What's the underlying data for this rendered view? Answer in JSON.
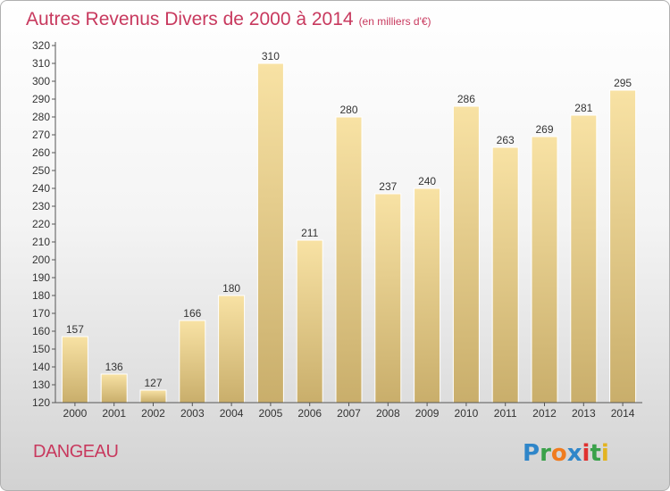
{
  "title": "Autres Revenus Divers de 2000 à 2014",
  "subtitle": "(en milliers d'€)",
  "commune": "DANGEAU",
  "logo_text": "Proxiti",
  "colors": {
    "title": "#c8395e",
    "bar_light": "#f8e2a4",
    "bar_dark": "#c9ae6b",
    "axis": "#555555"
  },
  "chart_data": {
    "type": "bar",
    "title": "Autres Revenus Divers de 2000 à 2014",
    "subtitle": "(en milliers d'€)",
    "categories": [
      "2000",
      "2001",
      "2002",
      "2003",
      "2004",
      "2005",
      "2006",
      "2007",
      "2008",
      "2009",
      "2010",
      "2011",
      "2012",
      "2013",
      "2014"
    ],
    "values": [
      157,
      136,
      127,
      166,
      180,
      310,
      211,
      280,
      237,
      240,
      286,
      263,
      269,
      281,
      295
    ],
    "ylim": [
      120,
      320
    ],
    "ytick_step": 10,
    "grid": false,
    "legend": "none"
  }
}
